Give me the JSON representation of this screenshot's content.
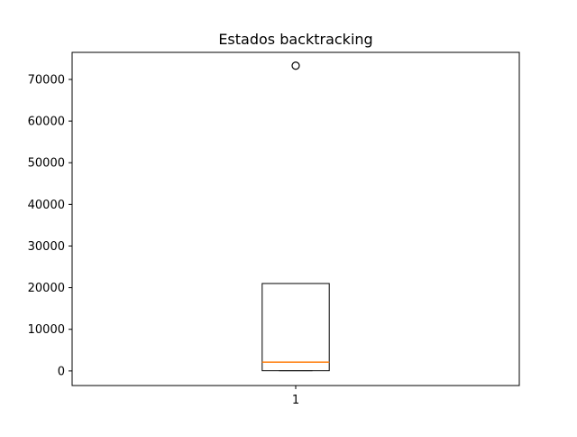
{
  "chart_data": {
    "type": "box",
    "title": "Estados backtracking",
    "xlabel": "",
    "ylabel": "",
    "categories": [
      "1"
    ],
    "ylim": [
      -3500,
      76500
    ],
    "yticks": [
      0,
      10000,
      20000,
      30000,
      40000,
      50000,
      60000,
      70000
    ],
    "ytick_labels": [
      "0",
      "10000",
      "20000",
      "30000",
      "40000",
      "50000",
      "60000",
      "70000"
    ],
    "grid": false,
    "boxes": [
      {
        "category": "1",
        "whisker_low": 50,
        "q1": 50,
        "median": 2100,
        "q3": 21000,
        "whisker_high": 21000,
        "outliers": [
          73300
        ]
      }
    ],
    "colors": {
      "box": "#000000",
      "median": "#ff7f0e",
      "outlier": "#000000"
    }
  }
}
